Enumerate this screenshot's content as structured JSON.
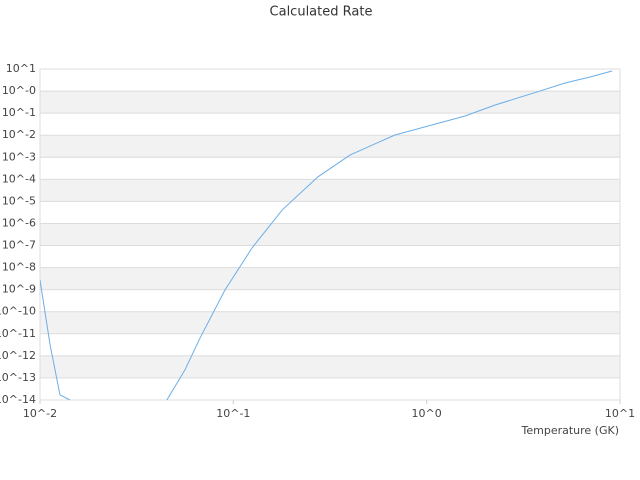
{
  "chart_data": {
    "type": "line",
    "title": "Calculated Rate",
    "x_label": "Temperature (GK)",
    "x": [
      0.01,
      0.01127,
      0.01269,
      0.01429,
      null,
      0.0453,
      0.0562,
      0.0673,
      0.0906,
      0.125,
      0.179,
      0.274,
      0.401,
      0.685,
      1.58,
      2.26,
      3.85,
      5.2,
      7.0,
      9.1
    ],
    "values": [
      2.75e-09,
      3.2e-12,
      1.7e-14,
      1e-14,
      null,
      1e-14,
      2.3e-13,
      6.5e-12,
      9.8e-10,
      7.8e-08,
      4.1e-06,
      0.00013,
      0.00126,
      0.0102,
      0.074,
      0.234,
      1.0,
      2.32,
      4.35,
      8.1
    ],
    "color": "#6aaee8",
    "xscale": "log",
    "yscale": "log",
    "xlim": [
      0.01,
      10
    ],
    "ylim": [
      1e-14,
      10
    ],
    "xticks": [
      {
        "value": 0.01,
        "label": "10^-2"
      },
      {
        "value": 0.1,
        "label": "10^-1"
      },
      {
        "value": 1,
        "label": "10^0"
      },
      {
        "value": 10,
        "label": "10^1"
      }
    ],
    "yticks": [
      {
        "value": 10,
        "label": "10^1"
      },
      {
        "value": 1,
        "label": "10^-0"
      },
      {
        "value": 0.1,
        "label": "10^-1"
      },
      {
        "value": 0.01,
        "label": "10^-2"
      },
      {
        "value": 0.001,
        "label": "10^-3"
      },
      {
        "value": 0.0001,
        "label": "10^-4"
      },
      {
        "value": 1e-05,
        "label": "10^-5"
      },
      {
        "value": 1e-06,
        "label": "10^-6"
      },
      {
        "value": 1e-07,
        "label": "10^-7"
      },
      {
        "value": 1e-08,
        "label": "10^-8"
      },
      {
        "value": 1e-09,
        "label": "10^-9"
      },
      {
        "value": 1e-10,
        "label": "10^-10"
      },
      {
        "value": 1e-11,
        "label": "10^-11"
      },
      {
        "value": 1e-12,
        "label": "10^-12"
      },
      {
        "value": 1e-13,
        "label": "10^-13"
      },
      {
        "value": 1e-14,
        "label": "10^-14"
      }
    ],
    "grid": true
  }
}
